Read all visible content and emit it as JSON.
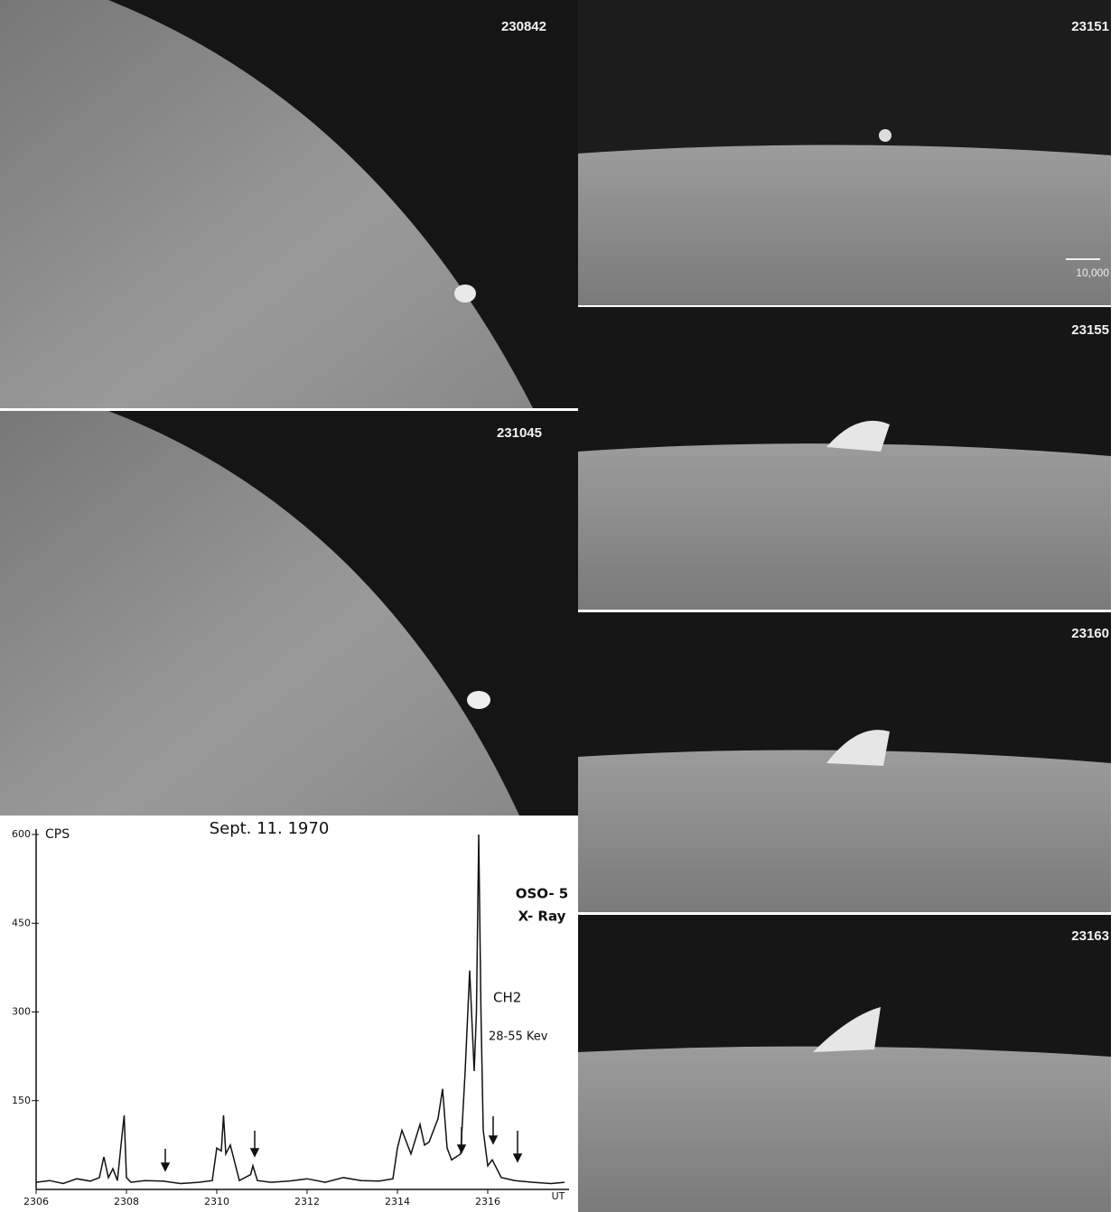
{
  "photos": {
    "stamps": [
      "230842",
      "231045",
      "23151",
      "23155",
      "23160",
      "23163"
    ],
    "scale_label": "10,000"
  },
  "chart_data": {
    "type": "line",
    "title": "Sept. 11. 1970",
    "y_label": "CPS",
    "x_label": "UT",
    "annotations": [
      "OSO- 5",
      "X- Ray",
      "CH2",
      "28-55 Kev"
    ],
    "x": [
      2306.0,
      2306.3,
      2306.6,
      2306.9,
      2307.2,
      2307.4,
      2307.5,
      2307.6,
      2307.7,
      2307.8,
      2307.9,
      2307.95,
      2308.0,
      2308.1,
      2308.4,
      2308.8,
      2309.2,
      2309.6,
      2309.9,
      2310.0,
      2310.1,
      2310.15,
      2310.2,
      2310.3,
      2310.5,
      2310.75,
      2310.8,
      2310.9,
      2311.2,
      2311.6,
      2312.0,
      2312.4,
      2312.8,
      2313.2,
      2313.6,
      2313.9,
      2314.0,
      2314.1,
      2314.3,
      2314.5,
      2314.6,
      2314.7,
      2314.9,
      2315.0,
      2315.1,
      2315.2,
      2315.4,
      2315.5,
      2315.6,
      2315.7,
      2315.75,
      2315.8,
      2315.85,
      2315.9,
      2316.0,
      2316.1,
      2316.3,
      2316.6,
      2317.0,
      2317.4,
      2317.7
    ],
    "series": [
      {
        "name": "CH2",
        "color": "#111111",
        "values": [
          12,
          15,
          10,
          18,
          14,
          20,
          55,
          20,
          35,
          15,
          90,
          125,
          20,
          12,
          15,
          14,
          10,
          12,
          15,
          70,
          65,
          125,
          60,
          75,
          15,
          25,
          40,
          15,
          12,
          14,
          18,
          12,
          20,
          15,
          14,
          18,
          70,
          100,
          60,
          110,
          75,
          80,
          120,
          170,
          70,
          50,
          60,
          200,
          370,
          200,
          300,
          600,
          300,
          100,
          40,
          50,
          20,
          15,
          12,
          10,
          12
        ]
      }
    ],
    "xlim": [
      2306,
      2317.8
    ],
    "xticks": [
      2306,
      2308,
      2310,
      2312,
      2314,
      2316
    ],
    "ylim": [
      0,
      600
    ],
    "yticks": [
      150,
      300,
      450,
      600
    ]
  }
}
